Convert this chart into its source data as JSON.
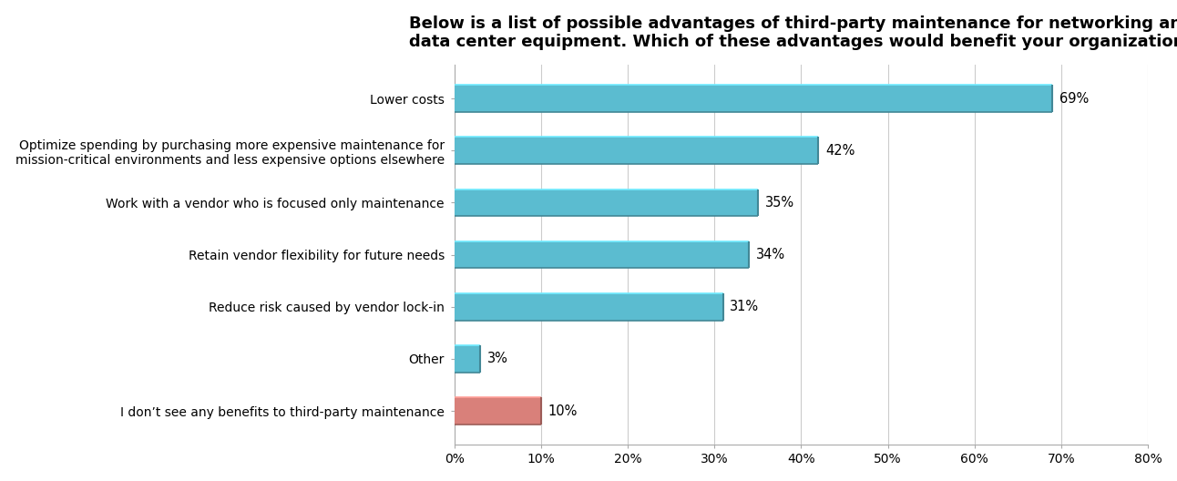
{
  "title_line1": "Below is a list of possible advantages of third-party maintenance for networking and",
  "title_line2": "data center equipment. Which of these advantages would benefit your organization?",
  "categories": [
    "Lower costs",
    "Optimize spending by purchasing more expensive maintenance for\nmission-critical environments and less expensive options elsewhere",
    "Work with a vendor who is focused only maintenance",
    "Retain vendor flexibility for future needs",
    "Reduce risk caused by vendor lock-in",
    "Other",
    "I don’t see any benefits to third-party maintenance"
  ],
  "values": [
    69,
    42,
    35,
    34,
    31,
    3,
    10
  ],
  "bar_colors": [
    "#5bbcd0",
    "#5bbcd0",
    "#5bbcd0",
    "#5bbcd0",
    "#5bbcd0",
    "#5bbcd0",
    "#d9807a"
  ],
  "value_labels": [
    "69%",
    "42%",
    "35%",
    "34%",
    "31%",
    "3%",
    "10%"
  ],
  "xlim": [
    0,
    80
  ],
  "xticks": [
    0,
    10,
    20,
    30,
    40,
    50,
    60,
    70,
    80
  ],
  "xticklabels": [
    "0%",
    "10%",
    "20%",
    "30%",
    "40%",
    "50%",
    "60%",
    "70%",
    "80%"
  ],
  "background_color": "#ffffff",
  "plot_bg_color": "#ffffff",
  "title_fontsize": 13,
  "bar_height": 0.52,
  "label_fontsize": 10.5,
  "tick_fontsize": 10,
  "category_fontsize": 10,
  "grid_color": "#cccccc",
  "spine_color": "#aaaaaa"
}
